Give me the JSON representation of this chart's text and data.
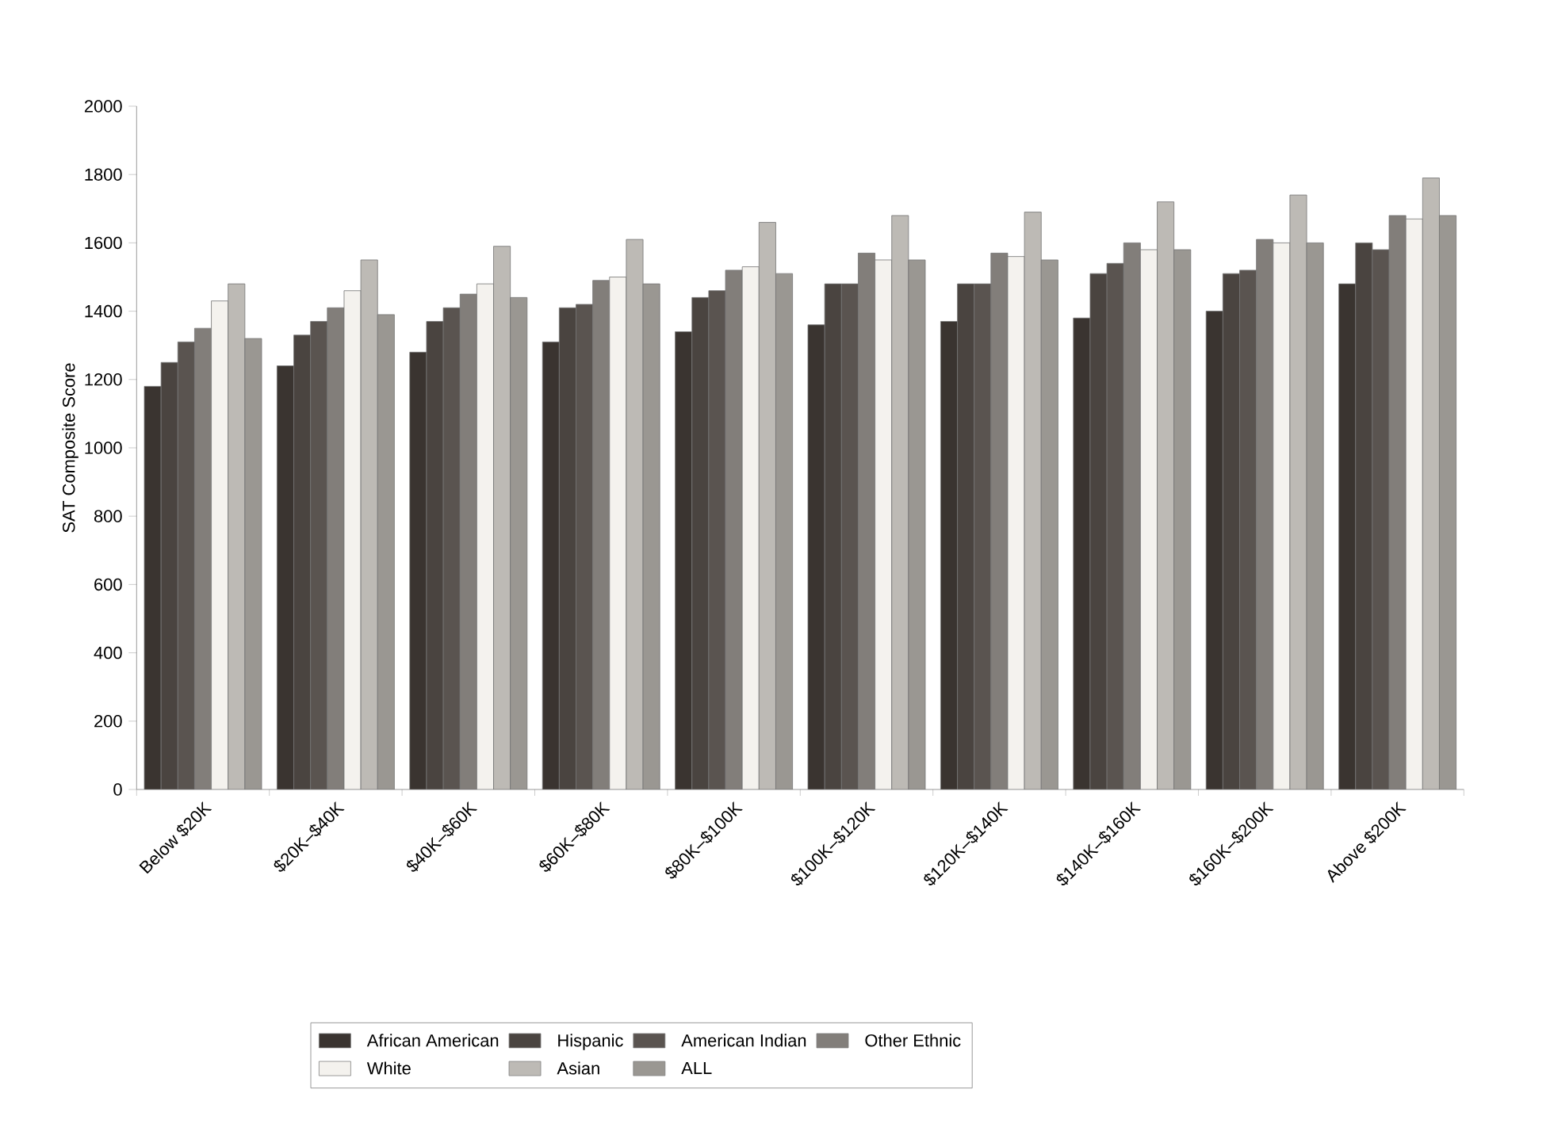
{
  "chart_data": {
    "type": "bar",
    "ylabel": "SAT Composite Score",
    "categories": [
      "Below $20K",
      "$20K–$40K",
      "$40K–$60K",
      "$60K–$80K",
      "$80K–$100K",
      "$100K–$120K",
      "$120K–$140K",
      "$140K–$160K",
      "$160K–$200K",
      "Above $200K"
    ],
    "series": [
      {
        "name": "African American",
        "color": "#3a3430",
        "values": [
          1180,
          1240,
          1280,
          1310,
          1340,
          1360,
          1370,
          1380,
          1400,
          1480
        ]
      },
      {
        "name": "Hispanic",
        "color": "#4a4440",
        "values": [
          1250,
          1330,
          1370,
          1410,
          1440,
          1480,
          1480,
          1510,
          1510,
          1600
        ]
      },
      {
        "name": "American Indian",
        "color": "#5a5450",
        "values": [
          1310,
          1370,
          1410,
          1420,
          1460,
          1480,
          1480,
          1540,
          1520,
          1580
        ]
      },
      {
        "name": "Other Ethnic",
        "color": "#827e7a",
        "values": [
          1350,
          1410,
          1450,
          1490,
          1520,
          1570,
          1570,
          1600,
          1610,
          1680
        ]
      },
      {
        "name": "White",
        "color": "#f4f2ee",
        "values": [
          1430,
          1460,
          1480,
          1500,
          1530,
          1550,
          1560,
          1580,
          1600,
          1670
        ]
      },
      {
        "name": "Asian",
        "color": "#bdbab5",
        "values": [
          1480,
          1550,
          1590,
          1610,
          1660,
          1680,
          1690,
          1720,
          1740,
          1790
        ]
      },
      {
        "name": "ALL",
        "color": "#9a9792",
        "values": [
          1320,
          1390,
          1440,
          1480,
          1510,
          1550,
          1550,
          1580,
          1600,
          1680
        ]
      }
    ],
    "ylim": [
      0,
      2000
    ],
    "yticks": [
      0,
      200,
      400,
      600,
      800,
      1000,
      1200,
      1400,
      1600,
      1800,
      2000
    ],
    "grid": false,
    "legend": "bottom"
  }
}
